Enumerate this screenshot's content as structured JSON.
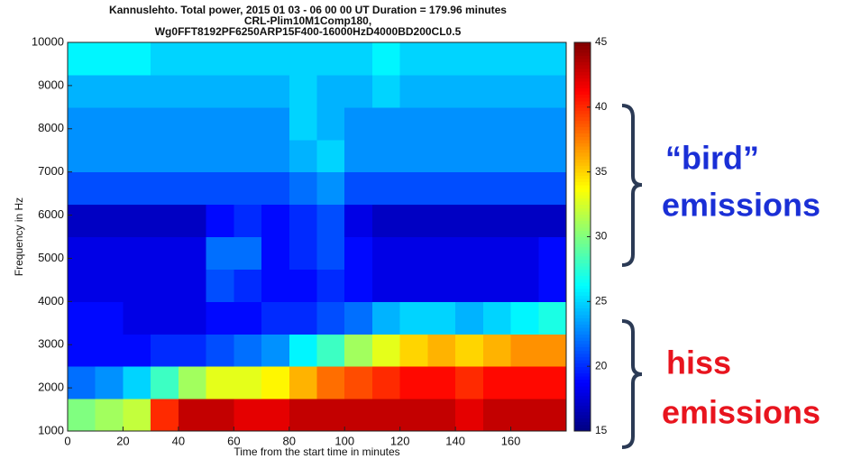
{
  "chart_data": {
    "type": "heatmap",
    "title": [
      "Kannuslehto. Total power, 2015 01 03 - 06 00 00 UT  Duration = 179.96 minutes",
      "CRL-Plim10M1Comp180,",
      "Wg0FFT8192PF6250ARP15F400-16000HzD4000BD200CL0.5"
    ],
    "x_label": "Time from the start time in minutes",
    "y_label": "Frequency in Hz",
    "xlim": [
      0,
      180
    ],
    "xticks": [
      0,
      20,
      40,
      60,
      80,
      100,
      120,
      140,
      160
    ],
    "ylim": [
      1000,
      10000
    ],
    "yticks": [
      1000,
      2000,
      3000,
      4000,
      5000,
      6000,
      7000,
      8000,
      9000,
      10000
    ],
    "colormap": "jet",
    "clim": [
      15,
      45
    ],
    "cticks": [
      15,
      20,
      25,
      30,
      35,
      40,
      45
    ],
    "z": [
      [
        30,
        31,
        32,
        40,
        43,
        43,
        42,
        42,
        43,
        43,
        43,
        43,
        43,
        43,
        42,
        43,
        43,
        43
      ],
      [
        22,
        23,
        25,
        28,
        31,
        33,
        33,
        34,
        36,
        38,
        39,
        40,
        41,
        41,
        40,
        41,
        41,
        41
      ],
      [
        19,
        19,
        19,
        20,
        20,
        21,
        22,
        23,
        26,
        28,
        31,
        33,
        35,
        36,
        35,
        36,
        37,
        37
      ],
      [
        19,
        19,
        18,
        18,
        18,
        19,
        19,
        20,
        20,
        21,
        22,
        24,
        25,
        25,
        24,
        25,
        26,
        27
      ],
      [
        18,
        18,
        18,
        18,
        18,
        21,
        20,
        19,
        19,
        20,
        19,
        18,
        18,
        18,
        18,
        18,
        18,
        19
      ],
      [
        18,
        18,
        18,
        18,
        18,
        22,
        22,
        19,
        20,
        21,
        19,
        18,
        18,
        18,
        18,
        18,
        18,
        19
      ],
      [
        17,
        17,
        17,
        17,
        17,
        19,
        20,
        19,
        20,
        21,
        18,
        17,
        17,
        17,
        17,
        17,
        17,
        17
      ],
      [
        21,
        21,
        21,
        21,
        21,
        21,
        21,
        21,
        22,
        23,
        21,
        21,
        21,
        21,
        21,
        21,
        21,
        21
      ],
      [
        23,
        23,
        23,
        23,
        23,
        23,
        23,
        23,
        24,
        25,
        23,
        23,
        23,
        23,
        23,
        23,
        23,
        23
      ],
      [
        23,
        23,
        23,
        23,
        23,
        23,
        23,
        23,
        25,
        24,
        23,
        23,
        23,
        23,
        23,
        23,
        23,
        23
      ],
      [
        24,
        24,
        24,
        24,
        24,
        24,
        24,
        24,
        25,
        24,
        24,
        25,
        24,
        24,
        24,
        24,
        24,
        24
      ],
      [
        26,
        26,
        26,
        25,
        25,
        25,
        25,
        25,
        25,
        25,
        25,
        26,
        25,
        25,
        25,
        25,
        25,
        25
      ]
    ],
    "annotations": [
      {
        "lines": [
          "“bird”",
          "emissions"
        ],
        "color": "#1a2fd6"
      },
      {
        "lines": [
          "hiss",
          "emissions"
        ],
        "color": "#e8141e"
      }
    ]
  }
}
